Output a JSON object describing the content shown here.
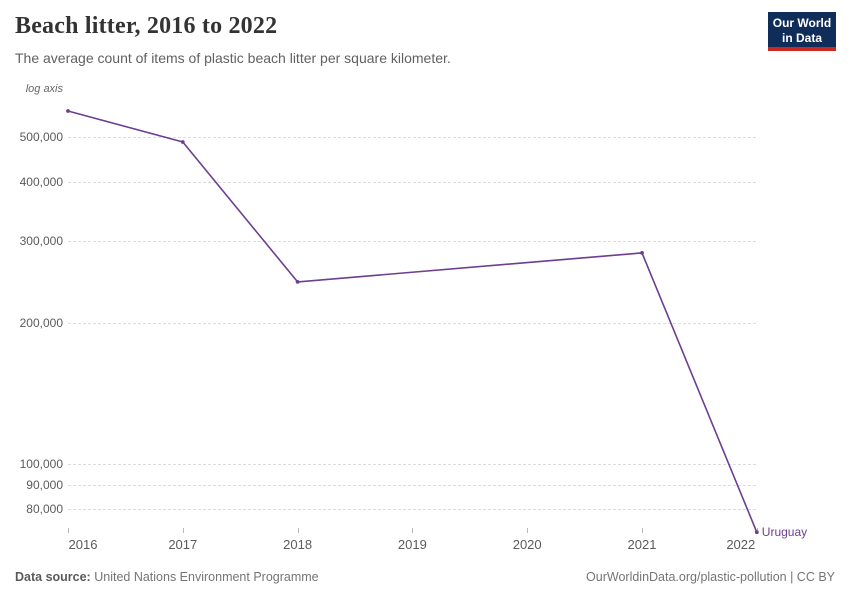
{
  "header": {
    "title": "Beach litter, 2016 to 2022",
    "subtitle": "The average count of items of plastic beach litter per square kilometer.",
    "logo_line1": "Our World",
    "logo_line2": "in Data"
  },
  "chart_data": {
    "type": "line",
    "title": "Beach litter, 2016 to 2022",
    "subtitle": "The average count of items of plastic beach litter per square kilometer.",
    "y_scale": "log",
    "axis_note": "log axis",
    "x": [
      2016,
      2017,
      2018,
      2021,
      2022
    ],
    "series": [
      {
        "name": "Uruguay",
        "color": "#6D3E91",
        "values": [
          568000,
          487500,
          245000,
          282500,
          71500
        ]
      }
    ],
    "x_ticks": [
      2016,
      2017,
      2018,
      2019,
      2020,
      2021,
      2022
    ],
    "y_ticks": [
      {
        "value": 500000,
        "label": "500,000"
      },
      {
        "value": 400000,
        "label": "400,000"
      },
      {
        "value": 300000,
        "label": "300,000"
      },
      {
        "value": 200000,
        "label": "200,000"
      },
      {
        "value": 100000,
        "label": "100,000"
      },
      {
        "value": 90000,
        "label": "90,000"
      },
      {
        "value": 80000,
        "label": "80,000"
      }
    ],
    "xlim": [
      2016,
      2022
    ],
    "ylim": [
      71500,
      568000
    ],
    "grid": "horizontal-dashed",
    "legend_position": "end-of-line-label"
  },
  "footer": {
    "source_label": "Data source:",
    "source_value": "United Nations Environment Programme",
    "attribution": "OurWorldinData.org/plastic-pollution | CC BY"
  },
  "colors": {
    "series": "#6D3E91",
    "grid": "#DCDCDC",
    "tick_text": "#5B5B5B",
    "logo_bg": "#102D59",
    "logo_red": "#CB2824"
  }
}
